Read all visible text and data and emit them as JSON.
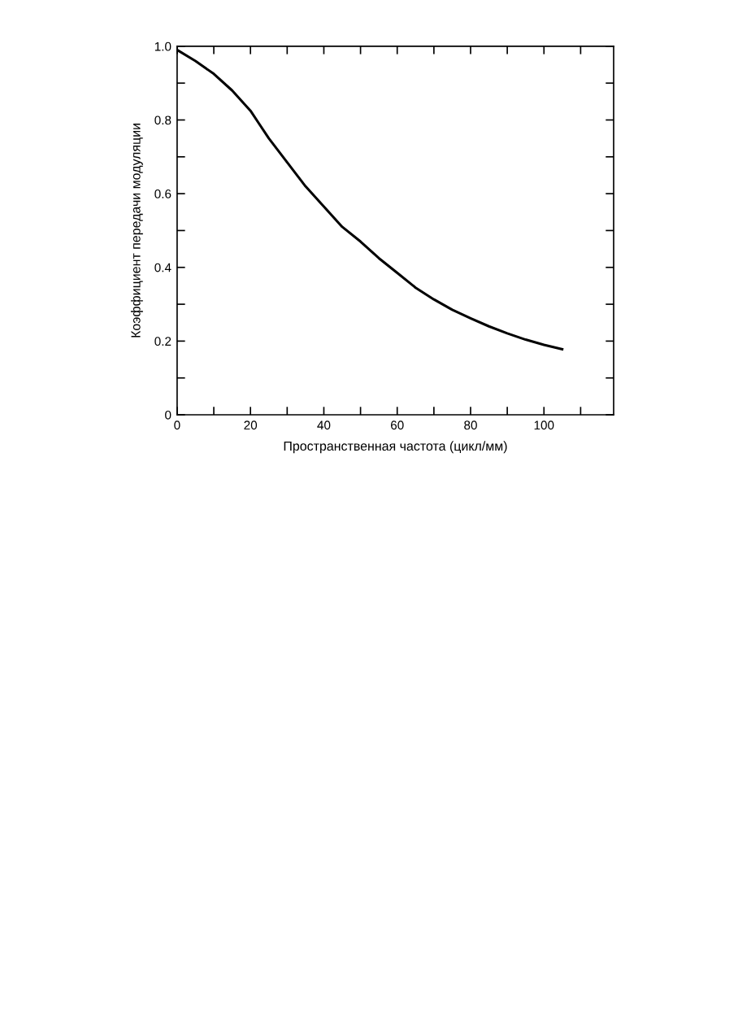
{
  "chart_data": {
    "type": "line",
    "xlabel": "Пространственная частота (цикл/мм)",
    "ylabel": "Коэффициент передачи модуляции",
    "x": [
      0,
      5,
      10,
      15,
      20,
      22,
      25,
      30,
      35,
      40,
      45,
      50,
      55,
      60,
      65,
      70,
      75,
      80,
      85,
      90,
      95,
      100,
      105.3
    ],
    "series": [
      {
        "color": "#000000",
        "values": [
          0.99,
          0.96,
          0.925,
          0.88,
          0.825,
          0.795,
          0.75,
          0.685,
          0.62,
          0.565,
          0.51,
          0.47,
          0.425,
          0.385,
          0.345,
          0.313,
          0.285,
          0.262,
          0.24,
          0.221,
          0.204,
          0.19,
          0.177
        ]
      }
    ],
    "xlim": [
      0,
      119
    ],
    "xticks": [
      0,
      {
        "value": 10,
        "label": null
      },
      20,
      {
        "value": 30,
        "label": null
      },
      40,
      {
        "value": 50,
        "label": null
      },
      60,
      {
        "value": 70,
        "label": null
      },
      80,
      {
        "value": 90,
        "label": null
      },
      100,
      {
        "value": 110,
        "label": null
      }
    ],
    "ylim": [
      0,
      1.0
    ],
    "yticks": [
      0,
      {
        "value": 0.1,
        "label": null
      },
      0.2,
      {
        "value": 0.3,
        "label": null
      },
      0.4,
      {
        "value": 0.5,
        "label": null
      },
      0.6,
      {
        "value": 0.7,
        "label": null
      },
      0.8,
      {
        "value": 0.9,
        "label": null
      },
      {
        "value": 1.0,
        "label": "1.0"
      }
    ],
    "grid": false,
    "marker": "none",
    "line_style": "solid"
  }
}
